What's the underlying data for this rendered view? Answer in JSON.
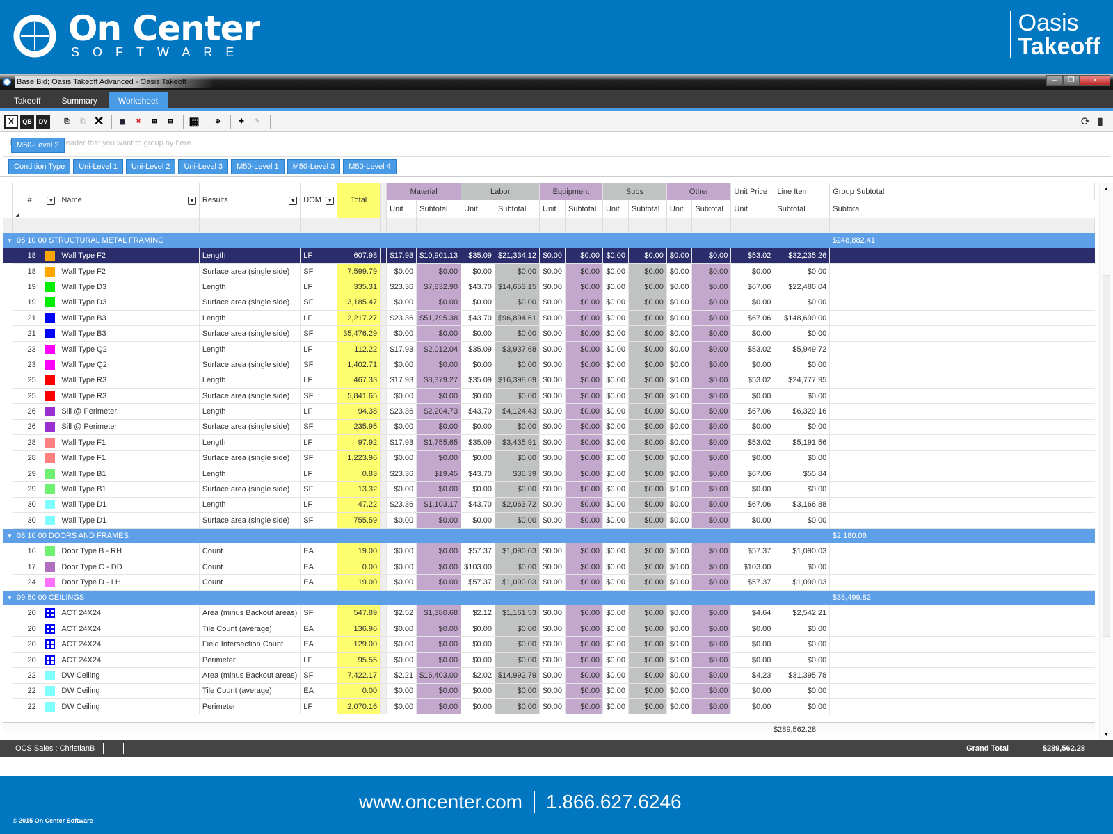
{
  "banner": {
    "brand_main": "On Center",
    "brand_sub": "SOFTWARE",
    "product_line1": "Oasis",
    "product_line2": "Takeoff"
  },
  "window": {
    "title": "Base Bid; Oasis Takeoff Advanced - Oasis Takeoff",
    "controls": {
      "minimize": "–",
      "maximize": "❐",
      "close": "x"
    }
  },
  "tabs": [
    {
      "label": "Takeoff",
      "active": false
    },
    {
      "label": "Summary",
      "active": false
    },
    {
      "label": "Worksheet",
      "active": true
    }
  ],
  "toolbar": {
    "excel": "X",
    "qb": "QB",
    "dv": "DV"
  },
  "grouping": {
    "hint": "Drag a column header that you want to group by here.",
    "active_group": "M50-Level 2",
    "chips": [
      "Condition Type",
      "Uni-Level 1",
      "Uni-Level 2",
      "Uni-Level 3",
      "M50-Level 1",
      "M50-Level 3",
      "M50-Level 4"
    ]
  },
  "columns": {
    "num": "#",
    "name": "Name",
    "results": "Results",
    "uom": "UOM",
    "total": "Total",
    "groups": {
      "material": "Material",
      "labor": "Labor",
      "equipment": "Equipment",
      "subs": "Subs",
      "other": "Other",
      "unit_price": "Unit Price",
      "line_item": "Line Item",
      "group_subtotal": "Group Subtotal"
    },
    "unit": "Unit",
    "subtotal": "Subtotal"
  },
  "groups": [
    {
      "title": "05 10 00 STRUCTURAL METAL FRAMING",
      "subtotal": "$248,882.41",
      "rows": [
        [
          "18",
          "#ffa500",
          "Wall Type F2",
          "Length",
          "LF",
          "607.98",
          "$17.93",
          "$10,901.13",
          "$35.09",
          "$21,334.12",
          "$0.00",
          "$0.00",
          "$0.00",
          "$0.00",
          "$0.00",
          "$0.00",
          "$53.02",
          "$32,235.26"
        ],
        [
          "18",
          "#ffa500",
          "Wall Type F2",
          "Surface area (single side)",
          "SF",
          "7,599.79",
          "$0.00",
          "$0.00",
          "$0.00",
          "$0.00",
          "$0.00",
          "$0.00",
          "$0.00",
          "$0.00",
          "$0.00",
          "$0.00",
          "$0.00",
          "$0.00"
        ],
        [
          "19",
          "#00ee00",
          "Wall Type D3",
          "Length",
          "LF",
          "335.31",
          "$23.36",
          "$7,832.90",
          "$43.70",
          "$14,653.15",
          "$0.00",
          "$0.00",
          "$0.00",
          "$0.00",
          "$0.00",
          "$0.00",
          "$67.06",
          "$22,486.04"
        ],
        [
          "19",
          "#00ee00",
          "Wall Type D3",
          "Surface area (single side)",
          "SF",
          "3,185.47",
          "$0.00",
          "$0.00",
          "$0.00",
          "$0.00",
          "$0.00",
          "$0.00",
          "$0.00",
          "$0.00",
          "$0.00",
          "$0.00",
          "$0.00",
          "$0.00"
        ],
        [
          "21",
          "#0000ff",
          "Wall Type B3",
          "Length",
          "LF",
          "2,217.27",
          "$23.36",
          "$51,795.38",
          "$43.70",
          "$96,894.61",
          "$0.00",
          "$0.00",
          "$0.00",
          "$0.00",
          "$0.00",
          "$0.00",
          "$67.06",
          "$148,690.00"
        ],
        [
          "21",
          "#0000ff",
          "Wall Type B3",
          "Surface area (single side)",
          "SF",
          "35,476.29",
          "$0.00",
          "$0.00",
          "$0.00",
          "$0.00",
          "$0.00",
          "$0.00",
          "$0.00",
          "$0.00",
          "$0.00",
          "$0.00",
          "$0.00",
          "$0.00"
        ],
        [
          "23",
          "#ff00ff",
          "Wall Type Q2",
          "Length",
          "LF",
          "112.22",
          "$17.93",
          "$2,012.04",
          "$35.09",
          "$3,937.68",
          "$0.00",
          "$0.00",
          "$0.00",
          "$0.00",
          "$0.00",
          "$0.00",
          "$53.02",
          "$5,949.72"
        ],
        [
          "23",
          "#ff00ff",
          "Wall Type Q2",
          "Surface area (single side)",
          "SF",
          "1,402.71",
          "$0.00",
          "$0.00",
          "$0.00",
          "$0.00",
          "$0.00",
          "$0.00",
          "$0.00",
          "$0.00",
          "$0.00",
          "$0.00",
          "$0.00",
          "$0.00"
        ],
        [
          "25",
          "#ff0000",
          "Wall Type R3",
          "Length",
          "LF",
          "467.33",
          "$17.93",
          "$8,379.27",
          "$35.09",
          "$16,398.69",
          "$0.00",
          "$0.00",
          "$0.00",
          "$0.00",
          "$0.00",
          "$0.00",
          "$53.02",
          "$24,777.95"
        ],
        [
          "25",
          "#ff0000",
          "Wall Type R3",
          "Surface area (single side)",
          "SF",
          "5,841.65",
          "$0.00",
          "$0.00",
          "$0.00",
          "$0.00",
          "$0.00",
          "$0.00",
          "$0.00",
          "$0.00",
          "$0.00",
          "$0.00",
          "$0.00",
          "$0.00"
        ],
        [
          "26",
          "#9b30d0",
          "Sill @ Perimeter",
          "Length",
          "LF",
          "94.38",
          "$23.36",
          "$2,204.73",
          "$43.70",
          "$4,124.43",
          "$0.00",
          "$0.00",
          "$0.00",
          "$0.00",
          "$0.00",
          "$0.00",
          "$67.06",
          "$6,329.16"
        ],
        [
          "26",
          "#9b30d0",
          "Sill @ Perimeter",
          "Surface area (single side)",
          "SF",
          "235.95",
          "$0.00",
          "$0.00",
          "$0.00",
          "$0.00",
          "$0.00",
          "$0.00",
          "$0.00",
          "$0.00",
          "$0.00",
          "$0.00",
          "$0.00",
          "$0.00"
        ],
        [
          "28",
          "#ff8080",
          "Wall Type F1",
          "Length",
          "LF",
          "97.92",
          "$17.93",
          "$1,755.65",
          "$35.09",
          "$3,435.91",
          "$0.00",
          "$0.00",
          "$0.00",
          "$0.00",
          "$0.00",
          "$0.00",
          "$53.02",
          "$5,191.56"
        ],
        [
          "28",
          "#ff8080",
          "Wall Type F1",
          "Surface area (single side)",
          "SF",
          "1,223.96",
          "$0.00",
          "$0.00",
          "$0.00",
          "$0.00",
          "$0.00",
          "$0.00",
          "$0.00",
          "$0.00",
          "$0.00",
          "$0.00",
          "$0.00",
          "$0.00"
        ],
        [
          "29",
          "#70f070",
          "Wall Type B1",
          "Length",
          "LF",
          "0.83",
          "$23.36",
          "$19.45",
          "$43.70",
          "$36.39",
          "$0.00",
          "$0.00",
          "$0.00",
          "$0.00",
          "$0.00",
          "$0.00",
          "$67.06",
          "$55.84"
        ],
        [
          "29",
          "#70f070",
          "Wall Type B1",
          "Surface area (single side)",
          "SF",
          "13.32",
          "$0.00",
          "$0.00",
          "$0.00",
          "$0.00",
          "$0.00",
          "$0.00",
          "$0.00",
          "$0.00",
          "$0.00",
          "$0.00",
          "$0.00",
          "$0.00"
        ],
        [
          "30",
          "#80ffff",
          "Wall Type D1",
          "Length",
          "LF",
          "47.22",
          "$23.36",
          "$1,103.17",
          "$43.70",
          "$2,063.72",
          "$0.00",
          "$0.00",
          "$0.00",
          "$0.00",
          "$0.00",
          "$0.00",
          "$67.06",
          "$3,166.88"
        ],
        [
          "30",
          "#80ffff",
          "Wall Type D1",
          "Surface area (single side)",
          "SF",
          "755.59",
          "$0.00",
          "$0.00",
          "$0.00",
          "$0.00",
          "$0.00",
          "$0.00",
          "$0.00",
          "$0.00",
          "$0.00",
          "$0.00",
          "$0.00",
          "$0.00"
        ]
      ]
    },
    {
      "title": "08 10 00 DOORS AND FRAMES",
      "subtotal": "$2,180.06",
      "rows": [
        [
          "16",
          "#70f070",
          "Door Type B - RH",
          "Count",
          "EA",
          "19.00",
          "$0.00",
          "$0.00",
          "$57.37",
          "$1,090.03",
          "$0.00",
          "$0.00",
          "$0.00",
          "$0.00",
          "$0.00",
          "$0.00",
          "$57.37",
          "$1,090.03"
        ],
        [
          "17",
          "#b070c0",
          "Door Type C - DD",
          "Count",
          "EA",
          "0.00",
          "$0.00",
          "$0.00",
          "$103.00",
          "$0.00",
          "$0.00",
          "$0.00",
          "$0.00",
          "$0.00",
          "$0.00",
          "$0.00",
          "$103.00",
          "$0.00"
        ],
        [
          "24",
          "#ff70ff",
          "Door Type D - LH",
          "Count",
          "EA",
          "19.00",
          "$0.00",
          "$0.00",
          "$57.37",
          "$1,090.03",
          "$0.00",
          "$0.00",
          "$0.00",
          "$0.00",
          "$0.00",
          "$0.00",
          "$57.37",
          "$1,090.03"
        ]
      ]
    },
    {
      "title": "09 50 00 CEILINGS",
      "subtotal": "$38,499.82",
      "rows": [
        [
          "20",
          "grid",
          "ACT 24X24",
          "Area (minus Backout areas)",
          "SF",
          "547.89",
          "$2.52",
          "$1,380.68",
          "$2.12",
          "$1,161.53",
          "$0.00",
          "$0.00",
          "$0.00",
          "$0.00",
          "$0.00",
          "$0.00",
          "$4.64",
          "$2,542.21"
        ],
        [
          "20",
          "grid",
          "ACT 24X24",
          "Tile Count (average)",
          "EA",
          "136.96",
          "$0.00",
          "$0.00",
          "$0.00",
          "$0.00",
          "$0.00",
          "$0.00",
          "$0.00",
          "$0.00",
          "$0.00",
          "$0.00",
          "$0.00",
          "$0.00"
        ],
        [
          "20",
          "grid",
          "ACT 24X24",
          "Field Intersection Count",
          "EA",
          "129.00",
          "$0.00",
          "$0.00",
          "$0.00",
          "$0.00",
          "$0.00",
          "$0.00",
          "$0.00",
          "$0.00",
          "$0.00",
          "$0.00",
          "$0.00",
          "$0.00"
        ],
        [
          "20",
          "grid",
          "ACT 24X24",
          "Perimeter",
          "LF",
          "95.55",
          "$0.00",
          "$0.00",
          "$0.00",
          "$0.00",
          "$0.00",
          "$0.00",
          "$0.00",
          "$0.00",
          "$0.00",
          "$0.00",
          "$0.00",
          "$0.00"
        ],
        [
          "22",
          "#80ffff",
          "DW Ceiling",
          "Area (minus Backout areas)",
          "SF",
          "7,422.17",
          "$2.21",
          "$16,403.00",
          "$2.02",
          "$14,992.79",
          "$0.00",
          "$0.00",
          "$0.00",
          "$0.00",
          "$0.00",
          "$0.00",
          "$4.23",
          "$31,395.78"
        ],
        [
          "22",
          "#80ffff",
          "DW Ceiling",
          "Tile Count (average)",
          "EA",
          "0.00",
          "$0.00",
          "$0.00",
          "$0.00",
          "$0.00",
          "$0.00",
          "$0.00",
          "$0.00",
          "$0.00",
          "$0.00",
          "$0.00",
          "$0.00",
          "$0.00"
        ],
        [
          "22",
          "#80ffff",
          "DW Ceiling",
          "Perimeter",
          "LF",
          "2,070.16",
          "$0.00",
          "$0.00",
          "$0.00",
          "$0.00",
          "$0.00",
          "$0.00",
          "$0.00",
          "$0.00",
          "$0.00",
          "$0.00",
          "$0.00",
          "$0.00"
        ]
      ]
    }
  ],
  "footer": {
    "line_item_total": "$289,562.28"
  },
  "status": {
    "user": "OCS Sales : ChristianB",
    "grand_total_label": "Grand Total",
    "grand_total": "$289,562.28"
  },
  "bottom": {
    "website": "www.oncenter.com",
    "phone": "1.866.627.6246",
    "copyright": "© 2015 On Center Software"
  },
  "colors": {
    "brand_blue": "#0177c1",
    "group_row": "#5da0e8",
    "selected_row": "#2a2c6b",
    "total_yellow": "#fdfd6e",
    "material_purple": "#c3a7cc",
    "labor_gray": "#c0c3c2"
  }
}
